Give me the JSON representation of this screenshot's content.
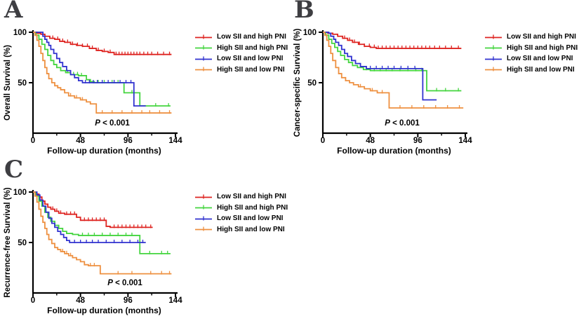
{
  "panels": [
    {
      "letter": "A"
    },
    {
      "letter": "B"
    },
    {
      "letter": "C"
    }
  ],
  "legend": {
    "entries": [
      {
        "label": "Low SII and high PNI",
        "color": "#de2421"
      },
      {
        "label": "High SII and high PNI",
        "color": "#44d53f"
      },
      {
        "label": "Low SII and low PNI",
        "color": "#3032cf"
      },
      {
        "label": "High SII and low PNI",
        "color": "#ee9040"
      }
    ]
  },
  "chart_data": [
    {
      "type": "line",
      "subtype": "kaplan-meier-step",
      "panel": "A",
      "title": "Overall Survival",
      "xlabel": "Follow-up duration (months)",
      "ylabel": "Overall Survival (%)",
      "xlim": [
        0,
        144
      ],
      "ylim": [
        0,
        100
      ],
      "x_ticks": [
        0,
        48,
        96,
        144
      ],
      "x_minor_ticks": [
        24,
        72,
        120
      ],
      "y_ticks": [
        50,
        100
      ],
      "annotation": {
        "p_italic": "P",
        "p_rest": " < 0.001"
      },
      "series": [
        {
          "name": "Low SII and high PNI",
          "color": "#de2421",
          "steps": [
            [
              0,
              100
            ],
            [
              4,
              99
            ],
            [
              8,
              98
            ],
            [
              12,
              96
            ],
            [
              17,
              94
            ],
            [
              22,
              93
            ],
            [
              27,
              91
            ],
            [
              32,
              90
            ],
            [
              38,
              88
            ],
            [
              44,
              87
            ],
            [
              50,
              86
            ],
            [
              57,
              84
            ],
            [
              64,
              82
            ],
            [
              70,
              81
            ],
            [
              76,
              80
            ],
            [
              82,
              78
            ],
            [
              140,
              78
            ]
          ],
          "censor_x": [
            20,
            25,
            30,
            35,
            40,
            45,
            50,
            55,
            60,
            66,
            72,
            78,
            84,
            87,
            90,
            93,
            96,
            99,
            102,
            105,
            108,
            112,
            116,
            120,
            126,
            132,
            138
          ]
        },
        {
          "name": "High SII and high PNI",
          "color": "#44d53f",
          "steps": [
            [
              0,
              100
            ],
            [
              3,
              97
            ],
            [
              6,
              93
            ],
            [
              9,
              88
            ],
            [
              12,
              83
            ],
            [
              15,
              77
            ],
            [
              18,
              72
            ],
            [
              21,
              68
            ],
            [
              24,
              65
            ],
            [
              28,
              62
            ],
            [
              33,
              60
            ],
            [
              38,
              58
            ],
            [
              46,
              57
            ],
            [
              54,
              53
            ],
            [
              58,
              51
            ],
            [
              62,
              50
            ],
            [
              92,
              40
            ],
            [
              108,
              27
            ],
            [
              139,
              27
            ]
          ],
          "censor_x": [
            35,
            41,
            45,
            49,
            66,
            72,
            80,
            86,
            100,
            124,
            137
          ]
        },
        {
          "name": "Low SII and low PNI",
          "color": "#3032cf",
          "steps": [
            [
              0,
              100
            ],
            [
              8,
              100
            ],
            [
              10,
              96
            ],
            [
              12,
              93
            ],
            [
              14,
              90
            ],
            [
              16,
              87
            ],
            [
              18,
              83
            ],
            [
              21,
              79
            ],
            [
              24,
              74
            ],
            [
              27,
              70
            ],
            [
              30,
              66
            ],
            [
              34,
              62
            ],
            [
              38,
              58
            ],
            [
              42,
              55
            ],
            [
              46,
              52
            ],
            [
              50,
              50
            ],
            [
              102,
              27
            ],
            [
              114,
              27
            ]
          ],
          "censor_x": [
            53,
            57,
            61,
            65,
            70,
            76,
            82,
            88,
            94,
            99
          ]
        },
        {
          "name": "High SII and low PNI",
          "color": "#ee9040",
          "steps": [
            [
              0,
              100
            ],
            [
              2,
              97
            ],
            [
              4,
              92
            ],
            [
              6,
              86
            ],
            [
              8,
              79
            ],
            [
              10,
              72
            ],
            [
              12,
              65
            ],
            [
              14,
              59
            ],
            [
              16,
              54
            ],
            [
              19,
              50
            ],
            [
              22,
              47
            ],
            [
              25,
              45
            ],
            [
              28,
              43
            ],
            [
              32,
              40
            ],
            [
              36,
              37
            ],
            [
              42,
              35
            ],
            [
              48,
              33
            ],
            [
              54,
              31
            ],
            [
              58,
              29
            ],
            [
              64,
              20
            ],
            [
              140,
              20
            ]
          ],
          "censor_x": [
            38,
            44,
            50,
            70,
            80,
            90,
            100,
            110,
            118,
            128,
            138
          ]
        }
      ]
    },
    {
      "type": "line",
      "subtype": "kaplan-meier-step",
      "panel": "B",
      "title": "Cancer-specific Survival",
      "xlabel": "Follow-up duration (months)",
      "ylabel": "Cancer-specific Survival (%)",
      "xlim": [
        0,
        144
      ],
      "ylim": [
        0,
        100
      ],
      "x_ticks": [
        0,
        48,
        96,
        144
      ],
      "x_minor_ticks": [
        24,
        72,
        120
      ],
      "y_ticks": [
        50,
        100
      ],
      "annotation": {
        "p_italic": "P",
        "p_rest": " < 0.001"
      },
      "series": [
        {
          "name": "Low SII and high PNI",
          "color": "#de2421",
          "steps": [
            [
              0,
              100
            ],
            [
              5,
              99
            ],
            [
              10,
              98
            ],
            [
              15,
              96
            ],
            [
              20,
              94
            ],
            [
              25,
              92
            ],
            [
              30,
              90
            ],
            [
              36,
              88
            ],
            [
              42,
              86
            ],
            [
              48,
              85
            ],
            [
              54,
              84
            ],
            [
              140,
              84
            ]
          ],
          "censor_x": [
            22,
            27,
            32,
            37,
            42,
            47,
            52,
            56,
            60,
            64,
            68,
            72,
            76,
            80,
            84,
            88,
            92,
            96,
            100,
            104,
            108,
            113,
            118,
            124,
            130,
            137
          ]
        },
        {
          "name": "High SII and high PNI",
          "color": "#44d53f",
          "steps": [
            [
              0,
              100
            ],
            [
              3,
              97
            ],
            [
              6,
              93
            ],
            [
              9,
              89
            ],
            [
              12,
              85
            ],
            [
              15,
              81
            ],
            [
              18,
              77
            ],
            [
              22,
              73
            ],
            [
              26,
              70
            ],
            [
              30,
              67
            ],
            [
              35,
              65
            ],
            [
              41,
              63
            ],
            [
              48,
              62
            ],
            [
              105,
              42
            ],
            [
              140,
              42
            ]
          ],
          "censor_x": [
            44,
            52,
            58,
            64,
            70,
            78,
            86,
            94,
            100,
            115,
            124,
            137
          ]
        },
        {
          "name": "Low SII and low PNI",
          "color": "#3032cf",
          "steps": [
            [
              0,
              100
            ],
            [
              6,
              99
            ],
            [
              8,
              96
            ],
            [
              11,
              93
            ],
            [
              13,
              90
            ],
            [
              16,
              87
            ],
            [
              19,
              83
            ],
            [
              22,
              79
            ],
            [
              25,
              76
            ],
            [
              29,
              72
            ],
            [
              33,
              69
            ],
            [
              38,
              66
            ],
            [
              44,
              64
            ],
            [
              101,
              33
            ],
            [
              115,
              33
            ]
          ],
          "censor_x": [
            48,
            54,
            60,
            66,
            72,
            79,
            86,
            93
          ]
        },
        {
          "name": "High SII and low PNI",
          "color": "#ee9040",
          "steps": [
            [
              0,
              100
            ],
            [
              2,
              97
            ],
            [
              4,
              92
            ],
            [
              6,
              86
            ],
            [
              8,
              79
            ],
            [
              10,
              72
            ],
            [
              13,
              65
            ],
            [
              16,
              59
            ],
            [
              19,
              55
            ],
            [
              23,
              52
            ],
            [
              27,
              50
            ],
            [
              31,
              48
            ],
            [
              36,
              46
            ],
            [
              42,
              44
            ],
            [
              48,
              42
            ],
            [
              55,
              40
            ],
            [
              67,
              25
            ],
            [
              142,
              25
            ]
          ],
          "censor_x": [
            38,
            50,
            60,
            78,
            90,
            102,
            114,
            126,
            138
          ]
        }
      ]
    },
    {
      "type": "line",
      "subtype": "kaplan-meier-step",
      "panel": "C",
      "title": "Recurrence-free Survival",
      "xlabel": "Follow-up duration (months)",
      "ylabel": "Recurrence-free Survival (%)",
      "xlim": [
        0,
        144
      ],
      "ylim": [
        0,
        100
      ],
      "x_ticks": [
        0,
        48,
        96,
        144
      ],
      "x_minor_ticks": [
        24,
        72,
        120
      ],
      "y_ticks": [
        50,
        100
      ],
      "annotation": {
        "p_italic": "P",
        "p_rest": " < 0.001"
      },
      "series": [
        {
          "name": "Low SII and high PNI",
          "color": "#de2421",
          "steps": [
            [
              0,
              100
            ],
            [
              3,
              98
            ],
            [
              6,
              95
            ],
            [
              9,
              91
            ],
            [
              12,
              88
            ],
            [
              15,
              85
            ],
            [
              18,
              83
            ],
            [
              22,
              81
            ],
            [
              26,
              79
            ],
            [
              32,
              78
            ],
            [
              44,
              75
            ],
            [
              48,
              72
            ],
            [
              74,
              66
            ],
            [
              78,
              65
            ],
            [
              121,
              65
            ]
          ],
          "censor_x": [
            20,
            24,
            28,
            34,
            38,
            42,
            52,
            56,
            60,
            64,
            68,
            72,
            82,
            86,
            90,
            94,
            98,
            102,
            106,
            110,
            114,
            119
          ]
        },
        {
          "name": "High SII and high PNI",
          "color": "#44d53f",
          "steps": [
            [
              0,
              100
            ],
            [
              3,
              96
            ],
            [
              6,
              91
            ],
            [
              9,
              86
            ],
            [
              12,
              80
            ],
            [
              15,
              75
            ],
            [
              18,
              71
            ],
            [
              22,
              67
            ],
            [
              26,
              64
            ],
            [
              30,
              61
            ],
            [
              34,
              59
            ],
            [
              40,
              58
            ],
            [
              46,
              57
            ],
            [
              108,
              39
            ],
            [
              139,
              39
            ]
          ],
          "censor_x": [
            50,
            56,
            62,
            70,
            78,
            86,
            94,
            100,
            118,
            130,
            136
          ]
        },
        {
          "name": "Low SII and low PNI",
          "color": "#3032cf",
          "steps": [
            [
              0,
              100
            ],
            [
              4,
              97
            ],
            [
              7,
              92
            ],
            [
              10,
              86
            ],
            [
              13,
              80
            ],
            [
              16,
              74
            ],
            [
              19,
              69
            ],
            [
              22,
              65
            ],
            [
              25,
              61
            ],
            [
              28,
              58
            ],
            [
              31,
              55
            ],
            [
              34,
              52
            ],
            [
              37,
              50
            ],
            [
              114,
              50
            ]
          ],
          "censor_x": [
            42,
            48,
            54,
            60,
            66,
            74,
            82,
            90,
            98,
            106,
            111
          ]
        },
        {
          "name": "High SII and low PNI",
          "color": "#ee9040",
          "steps": [
            [
              0,
              100
            ],
            [
              2,
              96
            ],
            [
              4,
              90
            ],
            [
              6,
              83
            ],
            [
              8,
              76
            ],
            [
              10,
              70
            ],
            [
              12,
              64
            ],
            [
              14,
              58
            ],
            [
              16,
              53
            ],
            [
              19,
              49
            ],
            [
              22,
              45
            ],
            [
              25,
              43
            ],
            [
              28,
              41
            ],
            [
              32,
              39
            ],
            [
              36,
              37
            ],
            [
              40,
              35
            ],
            [
              44,
              33
            ],
            [
              48,
              31
            ],
            [
              52,
              28
            ],
            [
              56,
              27
            ],
            [
              68,
              19
            ],
            [
              140,
              19
            ]
          ],
          "censor_x": [
            30,
            34,
            38,
            58,
            62,
            86,
            100,
            119,
            130,
            138
          ]
        }
      ]
    }
  ]
}
